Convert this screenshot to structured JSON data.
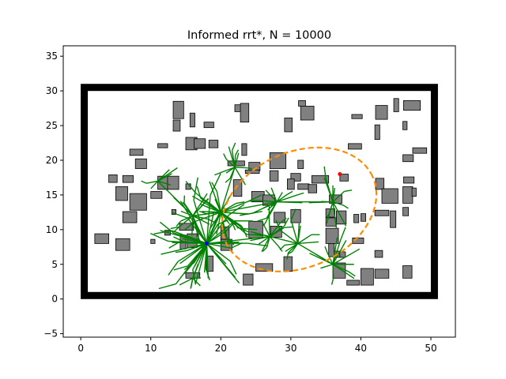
{
  "chart_data": {
    "type": "scatter",
    "title": "Informed rrt*, N = 10000",
    "xlabel": "",
    "ylabel": "",
    "xlim": [
      -2.5,
      53.5
    ],
    "ylim": [
      -5.5,
      36.5
    ],
    "xticks": [
      0,
      10,
      20,
      30,
      40,
      50
    ],
    "yticks": [
      -5,
      0,
      5,
      10,
      15,
      20,
      25,
      30,
      35
    ],
    "grid": false,
    "legend": "none",
    "colors": {
      "boundary": "#000000",
      "obstacle_fill": "#808080",
      "obstacle_edge": "#000000",
      "tree": "#008000",
      "ellipse": "#ff8c00",
      "start": "#0000ff",
      "goal": "#ff0000"
    },
    "boundary": {
      "x_min": 0.5,
      "x_max": 50.5,
      "y_min": 0.5,
      "y_max": 30.5
    },
    "start_point": {
      "x": 18,
      "y": 8
    },
    "goal_point": {
      "x": 37,
      "y": 18
    },
    "informed_ellipse": {
      "center": [
        31.2,
        12.9
      ],
      "semi_major": 11.5,
      "semi_minor": 8.3,
      "angle_deg": 24.5
    },
    "tree_hubs": [
      {
        "x": 18,
        "y": 8,
        "branches": 42,
        "length": 7.5
      },
      {
        "x": 20,
        "y": 12.5,
        "branches": 30,
        "length": 5
      },
      {
        "x": 16,
        "y": 12,
        "branches": 16,
        "length": 4
      },
      {
        "x": 28,
        "y": 14,
        "branches": 12,
        "length": 4
      },
      {
        "x": 27,
        "y": 9,
        "branches": 12,
        "length": 4
      },
      {
        "x": 36,
        "y": 5,
        "branches": 12,
        "length": 4.5
      },
      {
        "x": 31,
        "y": 8,
        "branches": 10,
        "length": 3.5
      },
      {
        "x": 36,
        "y": 14,
        "branches": 12,
        "length": 4
      },
      {
        "x": 22,
        "y": 19,
        "branches": 10,
        "length": 3.5
      },
      {
        "x": 11,
        "y": 17,
        "branches": 6,
        "length": 3
      },
      {
        "x": 16,
        "y": 3,
        "branches": 6,
        "length": 2.5
      }
    ],
    "obstacles": [
      [
        13.2,
        26.0,
        1.5,
        2.5
      ],
      [
        13.2,
        24.2,
        1.0,
        1.6
      ],
      [
        15.6,
        24.8,
        0.7,
        2.0
      ],
      [
        17.6,
        24.7,
        1.4,
        0.8
      ],
      [
        22.0,
        27.0,
        1.5,
        1.0
      ],
      [
        22.8,
        25.5,
        1.2,
        2.7
      ],
      [
        31.1,
        27.8,
        1.0,
        0.8
      ],
      [
        31.4,
        25.8,
        1.9,
        2.0
      ],
      [
        29.1,
        24.1,
        1.1,
        2.0
      ],
      [
        38.7,
        26.0,
        1.5,
        0.6
      ],
      [
        42.1,
        25.9,
        1.7,
        2.0
      ],
      [
        44.7,
        27.0,
        0.7,
        1.9
      ],
      [
        46.1,
        27.2,
        2.4,
        1.4
      ],
      [
        46.0,
        24.4,
        0.6,
        1.2
      ],
      [
        42.0,
        23.0,
        0.7,
        2.1
      ],
      [
        38.2,
        21.6,
        1.9,
        0.8
      ],
      [
        11.0,
        21.8,
        1.4,
        0.6
      ],
      [
        15.0,
        21.5,
        1.6,
        1.8
      ],
      [
        16.2,
        21.7,
        1.6,
        1.4
      ],
      [
        18.3,
        21.8,
        1.3,
        1.1
      ],
      [
        7.0,
        20.7,
        1.9,
        0.9
      ],
      [
        23.0,
        20.7,
        0.7,
        1.7
      ],
      [
        21.0,
        19.2,
        2.4,
        0.7
      ],
      [
        27.0,
        18.8,
        2.3,
        2.3
      ],
      [
        24.0,
        18.5,
        1.6,
        1.2
      ],
      [
        23.5,
        18.1,
        2.0,
        0.5
      ],
      [
        31.0,
        18.8,
        0.8,
        1.2
      ],
      [
        46.0,
        19.8,
        1.5,
        1.0
      ],
      [
        47.4,
        21.0,
        2.0,
        0.8
      ],
      [
        7.8,
        18.8,
        1.6,
        1.4
      ],
      [
        4.0,
        16.8,
        1.2,
        1.1
      ],
      [
        6.0,
        16.8,
        1.5,
        1.0
      ],
      [
        11.0,
        15.8,
        1.5,
        1.9
      ],
      [
        12.4,
        15.8,
        1.6,
        1.9
      ],
      [
        15.0,
        15.8,
        0.7,
        0.8
      ],
      [
        21.8,
        14.8,
        1.2,
        2.4
      ],
      [
        27.0,
        17.0,
        1.2,
        1.5
      ],
      [
        30.0,
        17.0,
        1.4,
        1.1
      ],
      [
        29.5,
        15.8,
        1.0,
        1.5
      ],
      [
        31.0,
        15.8,
        1.6,
        0.8
      ],
      [
        33.0,
        16.7,
        2.4,
        1.1
      ],
      [
        32.5,
        15.3,
        1.2,
        1.2
      ],
      [
        37.0,
        17.0,
        1.2,
        1.0
      ],
      [
        42.1,
        15.8,
        1.2,
        1.6
      ],
      [
        46.1,
        16.7,
        1.5,
        0.9
      ],
      [
        5.0,
        14.2,
        1.7,
        2.0
      ],
      [
        7.0,
        12.8,
        2.4,
        2.4
      ],
      [
        43.0,
        13.8,
        2.3,
        2.1
      ],
      [
        46.0,
        13.8,
        1.4,
        2.4
      ],
      [
        47.3,
        14.8,
        0.6,
        1.2
      ],
      [
        10.0,
        14.5,
        1.6,
        1.0
      ],
      [
        24.4,
        14.0,
        1.8,
        1.5
      ],
      [
        26.0,
        13.5,
        1.7,
        1.5
      ],
      [
        35.5,
        13.8,
        1.8,
        1.2
      ],
      [
        13.0,
        12.2,
        0.6,
        0.7
      ],
      [
        6.0,
        11.0,
        2.0,
        1.6
      ],
      [
        27.6,
        11.0,
        1.6,
        1.5
      ],
      [
        30.0,
        11.0,
        1.4,
        1.9
      ],
      [
        35.0,
        11.8,
        1.3,
        1.2
      ],
      [
        35.0,
        10.5,
        1.5,
        1.2
      ],
      [
        36.5,
        10.8,
        1.4,
        1.9
      ],
      [
        39.0,
        11.0,
        0.7,
        1.2
      ],
      [
        40.0,
        11.2,
        0.7,
        1.1
      ],
      [
        42.0,
        12.0,
        2.0,
        0.8
      ],
      [
        44.2,
        10.3,
        0.8,
        2.4
      ],
      [
        46.0,
        12.0,
        0.8,
        1.2
      ],
      [
        14.1,
        9.9,
        2.0,
        1.0
      ],
      [
        24.0,
        8.8,
        2.0,
        2.4
      ],
      [
        27.1,
        8.9,
        1.6,
        1.6
      ],
      [
        12.0,
        9.2,
        0.8,
        0.7
      ],
      [
        2.0,
        8.0,
        2.0,
        1.4
      ],
      [
        5.0,
        7.0,
        2.0,
        1.7
      ],
      [
        10.0,
        8.0,
        0.6,
        0.6
      ],
      [
        14.2,
        7.2,
        0.8,
        2.0
      ],
      [
        15.2,
        7.4,
        1.4,
        2.0
      ],
      [
        20.0,
        8.6,
        1.2,
        1.8
      ],
      [
        20.0,
        7.0,
        1.6,
        1.6
      ],
      [
        35.0,
        8.0,
        1.8,
        2.2
      ],
      [
        38.8,
        8.0,
        1.6,
        0.8
      ],
      [
        35.4,
        6.1,
        0.8,
        1.9
      ],
      [
        36.2,
        6.0,
        1.0,
        0.9
      ],
      [
        37.0,
        6.0,
        0.8,
        0.8
      ],
      [
        18.0,
        4.0,
        0.9,
        2.2
      ],
      [
        29.0,
        4.0,
        1.2,
        2.1
      ],
      [
        25.0,
        4.0,
        2.4,
        1.1
      ],
      [
        42.0,
        6.0,
        1.1,
        1.0
      ],
      [
        15.0,
        3.0,
        2.0,
        0.8
      ],
      [
        23.2,
        2.0,
        1.4,
        1.6
      ],
      [
        36.0,
        3.0,
        1.8,
        2.2
      ],
      [
        38.0,
        2.0,
        1.8,
        0.7
      ],
      [
        40.0,
        2.0,
        1.8,
        2.4
      ],
      [
        42.0,
        3.0,
        2.0,
        1.3
      ],
      [
        46.0,
        3.0,
        1.3,
        1.8
      ]
    ]
  }
}
